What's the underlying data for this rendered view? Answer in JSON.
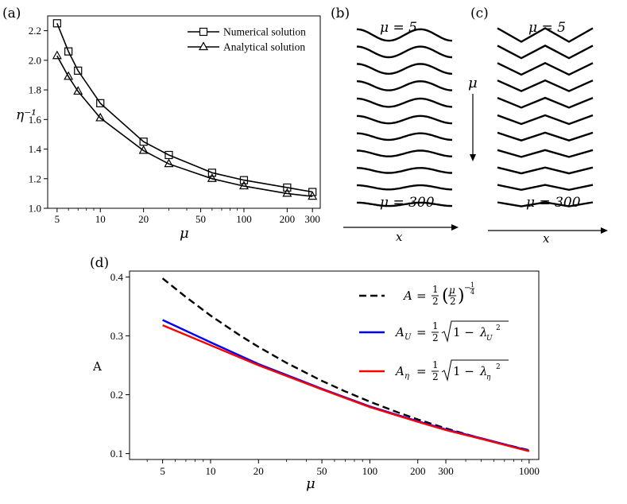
{
  "chart_data": [
    {
      "panel": "(a)",
      "type": "line",
      "xscale": "log",
      "xlabel": "μ",
      "ylabel": "η⁻¹",
      "xticks": [
        5,
        10,
        20,
        50,
        100,
        200,
        300
      ],
      "yticks": [
        "1.0",
        "1.2",
        "1.4",
        "1.6",
        "1.8",
        "2.0",
        "2.2"
      ],
      "ylim": [
        1.0,
        2.3
      ],
      "legend_position": "top-right",
      "series": [
        {
          "name": "Numerical solution",
          "marker": "square",
          "x": [
            5,
            6,
            7,
            10,
            20,
            30,
            60,
            100,
            200,
            300
          ],
          "y": [
            2.25,
            2.06,
            1.93,
            1.71,
            1.45,
            1.36,
            1.24,
            1.19,
            1.14,
            1.11
          ]
        },
        {
          "name": "Analytical solution",
          "marker": "triangle",
          "x": [
            5,
            6,
            7,
            10,
            20,
            30,
            60,
            100,
            200,
            300
          ],
          "y": [
            2.03,
            1.89,
            1.79,
            1.61,
            1.39,
            1.3,
            1.2,
            1.15,
            1.1,
            1.08
          ]
        }
      ]
    },
    {
      "panel": "(d)",
      "type": "line",
      "xscale": "log",
      "xlabel": "μ",
      "ylabel": "A",
      "xticks": [
        5,
        10,
        20,
        50,
        100,
        200,
        300,
        1000
      ],
      "yticks": [
        "0.1",
        "0.2",
        "0.3",
        "0.4"
      ],
      "ylim": [
        0.09,
        0.41
      ],
      "legend_position": "top-right",
      "series": [
        {
          "name": "A = 1/2 (μ/2)^(-1/4)",
          "style": "dashed",
          "color": "#000000",
          "x": [
            5,
            7,
            10,
            15,
            20,
            30,
            50,
            70,
            100,
            150,
            200,
            300,
            500,
            700,
            1000
          ],
          "y": [
            0.3976,
            0.366,
            0.3344,
            0.3022,
            0.2812,
            0.2541,
            0.2236,
            0.2057,
            0.1881,
            0.17,
            0.1581,
            0.1429,
            0.1257,
            0.1157,
            0.1057
          ]
        },
        {
          "name": "A_U = 1/2 √(1 − λ_U²)",
          "style": "solid",
          "color": "#0000ff",
          "x": [
            5,
            10,
            20,
            50,
            100,
            200,
            300,
            500,
            1000
          ],
          "y": [
            0.327,
            0.289,
            0.252,
            0.21,
            0.18,
            0.155,
            0.141,
            0.126,
            0.105
          ]
        },
        {
          "name": "A_η = 1/2 √(1 − λ_η²)",
          "style": "solid",
          "color": "#ff0000",
          "x": [
            5,
            10,
            20,
            50,
            100,
            200,
            300,
            500,
            1000
          ],
          "y": [
            0.318,
            0.284,
            0.25,
            0.209,
            0.179,
            0.154,
            0.14,
            0.125,
            0.104
          ]
        }
      ]
    }
  ],
  "panels": {
    "a": {
      "label": "(a)"
    },
    "b": {
      "label": "(b)",
      "top_text": "μ = 5",
      "bottom_text": "μ = 300",
      "axis_label": "x",
      "arrow_label": "μ",
      "waves": 11
    },
    "c": {
      "label": "(c)",
      "top_text": "μ = 5",
      "bottom_text": "μ = 300",
      "axis_label": "x",
      "waves": 11
    },
    "d": {
      "label": "(d)"
    }
  }
}
